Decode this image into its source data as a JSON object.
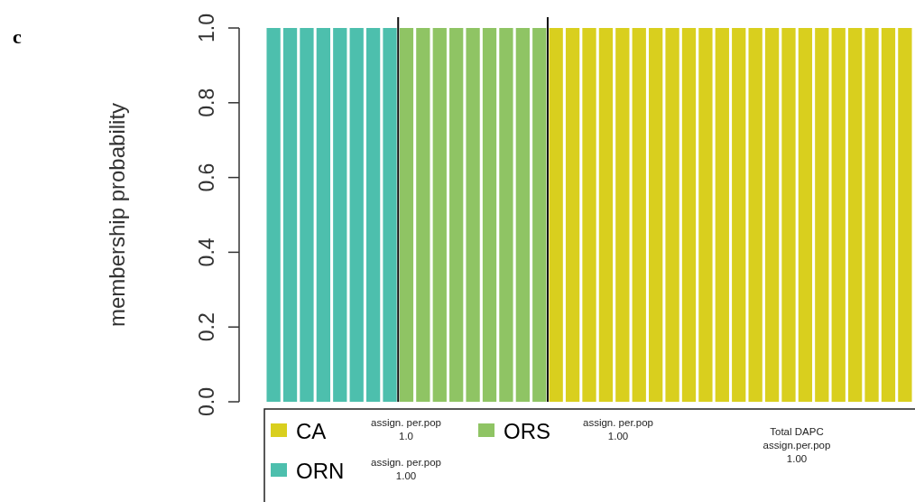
{
  "chart_data": {
    "type": "bar",
    "title": "c",
    "ylabel": "membership probability",
    "stacked": true,
    "legend": "bottom",
    "tick_labels": "y",
    "categories": [
      null,
      null,
      null,
      null,
      null,
      null,
      null,
      null,
      null,
      null,
      null,
      null,
      null,
      null,
      null,
      null,
      null,
      null,
      null,
      null,
      null,
      null,
      null,
      null,
      null,
      null,
      null,
      null,
      null,
      null,
      null,
      null,
      null,
      null,
      null,
      null,
      null,
      null,
      null
    ],
    "ylim": [
      0,
      1
    ],
    "yticks": [
      {
        "value": 0,
        "label": "0.0"
      },
      {
        "value": 0.2,
        "label": "0.2"
      },
      {
        "value": 0.4,
        "label": "0.4"
      },
      {
        "value": 0.6,
        "label": "0.6"
      },
      {
        "value": 0.8,
        "label": "0.8"
      },
      {
        "value": 1,
        "label": "1.0"
      }
    ],
    "series": [
      {
        "name": "CA",
        "color": "#d9cf1e",
        "values": [
          null,
          null,
          null,
          null,
          null,
          null,
          null,
          null,
          null,
          null,
          null,
          null,
          null,
          null,
          null,
          null,
          null,
          1,
          1,
          1,
          1,
          1,
          1,
          1,
          1,
          1,
          1,
          1,
          1,
          1,
          1,
          1,
          1,
          1,
          1,
          1,
          1,
          1,
          1
        ]
      },
      {
        "name": "ORS",
        "color": "#8fc464",
        "values": [
          null,
          null,
          null,
          null,
          null,
          null,
          null,
          null,
          1,
          1,
          1,
          1,
          1,
          1,
          1,
          1,
          1,
          null,
          null,
          null,
          null,
          null,
          null,
          null,
          null,
          null,
          null,
          null,
          null,
          null,
          null,
          null,
          null,
          null,
          null,
          null,
          null,
          null,
          null
        ]
      },
      {
        "name": "ORN",
        "color": "#4dbfad",
        "values": [
          1,
          1,
          1,
          1,
          1,
          1,
          1,
          1,
          null,
          null,
          null,
          null,
          null,
          null,
          null,
          null,
          null,
          null,
          null,
          null,
          null,
          null,
          null,
          null,
          null,
          null,
          null,
          null,
          null,
          null,
          null,
          null,
          null,
          null,
          null,
          null,
          null,
          null,
          null
        ]
      }
    ],
    "annotations": [
      "assign. per.pop\n1.0",
      "assign. per.pop\n1.00",
      "assign. per.pop\n1.00",
      "Total DAPC\nassign.per.pop\n1.00"
    ]
  }
}
